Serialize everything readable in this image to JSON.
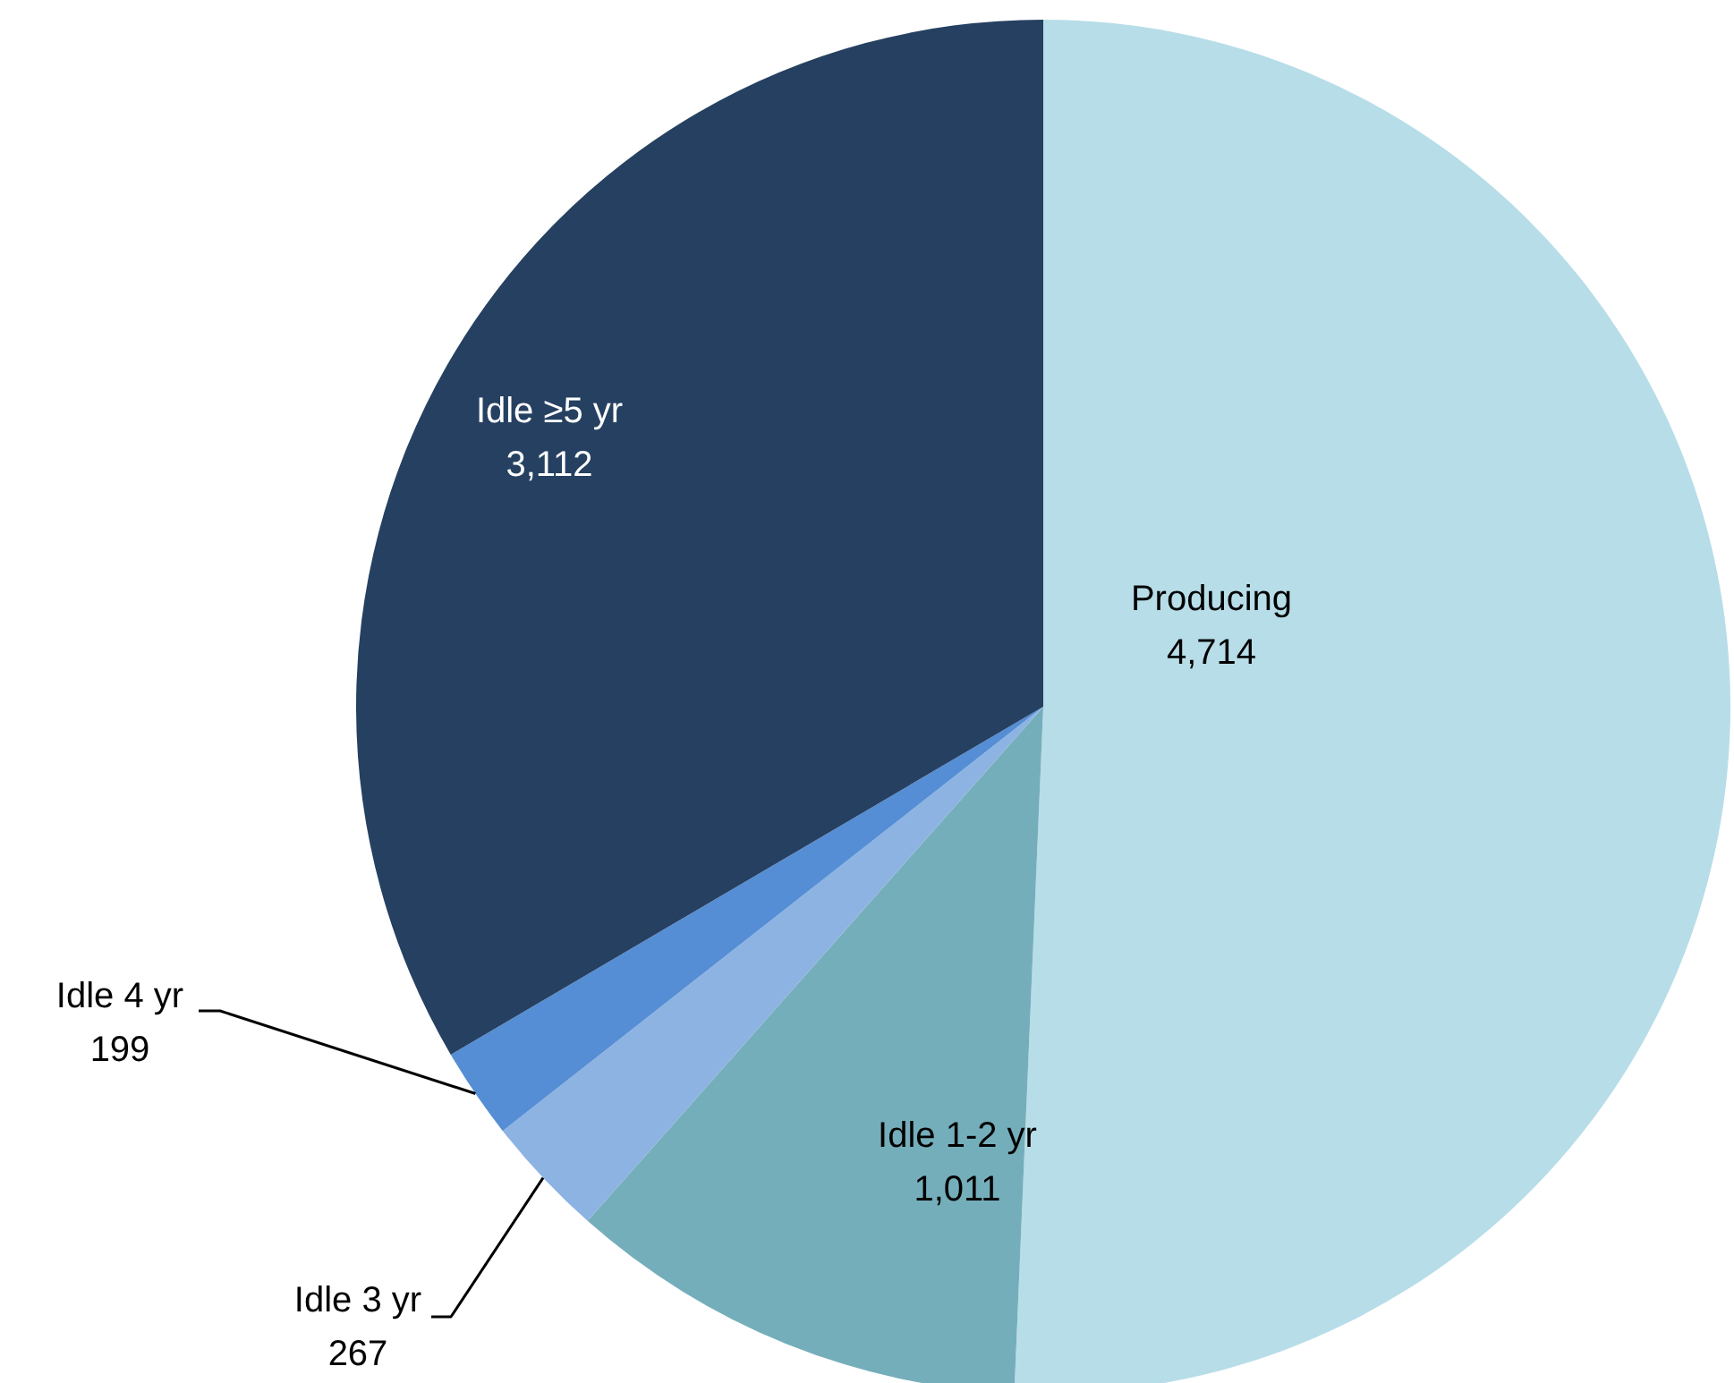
{
  "chart_data": {
    "type": "pie",
    "categories": [
      "Producing",
      "Idle 1-2 yr",
      "Idle 3 yr",
      "Idle 4 yr",
      "Idle ≥5 yr"
    ],
    "values": [
      4714,
      1011,
      267,
      199,
      3112
    ],
    "value_labels": [
      "4,714",
      "1,011",
      "267",
      "199",
      "3,112"
    ],
    "colors": [
      "#b7dde8",
      "#75aebb",
      "#8db3e2",
      "#558ed5",
      "#254061"
    ]
  }
}
